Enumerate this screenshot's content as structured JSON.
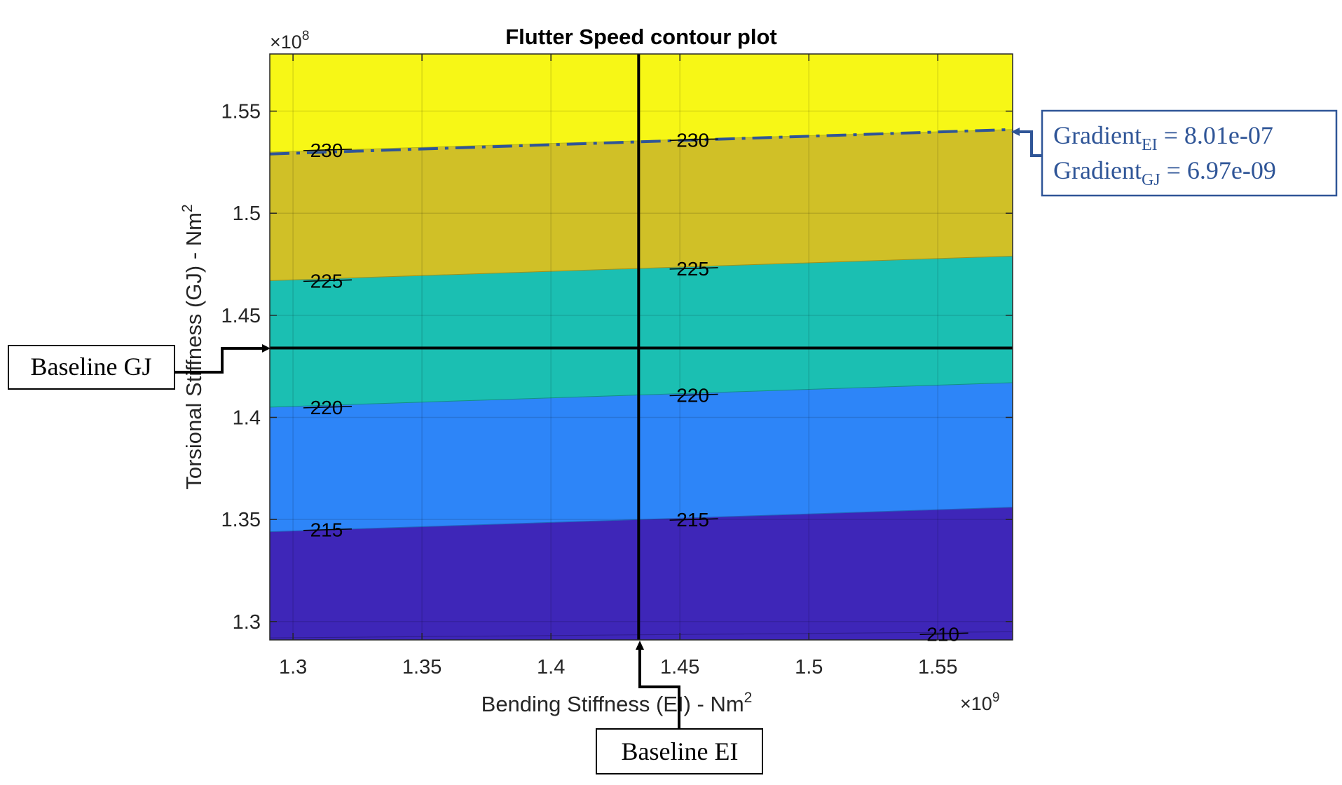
{
  "chart_data": {
    "type": "contour",
    "title": "Flutter Speed contour plot",
    "xlabel": "Bending Stiffness (EI) - Nm",
    "xlabel_sup": "2",
    "ylabel": "Torsional Stiffness (GJ) - Nm",
    "ylabel_sup": "2",
    "x_multiplier": "×10",
    "x_multiplier_exp": "9",
    "y_multiplier": "×10",
    "y_multiplier_exp": "8",
    "xlim": [
      1.291,
      1.579
    ],
    "ylim": [
      1.291,
      1.578
    ],
    "x_ticks": [
      1.3,
      1.35,
      1.4,
      1.45,
      1.5,
      1.55
    ],
    "x_tick_labels": [
      "1.3",
      "1.35",
      "1.4",
      "1.45",
      "1.5",
      "1.55"
    ],
    "y_ticks": [
      1.3,
      1.35,
      1.4,
      1.45,
      1.5,
      1.55
    ],
    "y_tick_labels": [
      "1.3",
      "1.35",
      "1.4",
      "1.45",
      "1.5",
      "1.55"
    ],
    "grid": true,
    "levels": [
      {
        "value": 210,
        "y_left": 1.292,
        "y_right": 1.295
      },
      {
        "value": 215,
        "y_left": 1.344,
        "y_right": 1.356
      },
      {
        "value": 220,
        "y_left": 1.405,
        "y_right": 1.417
      },
      {
        "value": 225,
        "y_left": 1.467,
        "y_right": 1.479
      },
      {
        "value": 230,
        "y_left": 1.53,
        "y_right": 1.541
      }
    ],
    "bands": [
      {
        "color": "#3e26b8"
      },
      {
        "color": "#2d85f8"
      },
      {
        "color": "#1bbfb2"
      },
      {
        "color": "#d0c027"
      },
      {
        "color": "#f7f716"
      }
    ],
    "contour_labels": [
      {
        "text": "210",
        "x": 1.552,
        "y": 1.294
      },
      {
        "text": "215",
        "x": 1.313,
        "y": 1.345
      },
      {
        "text": "215",
        "x": 1.455,
        "y": 1.35
      },
      {
        "text": "220",
        "x": 1.313,
        "y": 1.405
      },
      {
        "text": "220",
        "x": 1.455,
        "y": 1.411
      },
      {
        "text": "225",
        "x": 1.313,
        "y": 1.467
      },
      {
        "text": "225",
        "x": 1.455,
        "y": 1.473
      },
      {
        "text": "230",
        "x": 1.313,
        "y": 1.531
      },
      {
        "text": "230",
        "x": 1.455,
        "y": 1.536
      }
    ],
    "baseline": {
      "EI": 1.434,
      "GJ": 1.434
    },
    "gradient_line": {
      "x": [
        1.291,
        1.579
      ],
      "y": [
        1.529,
        1.541
      ]
    }
  },
  "annotations": {
    "baseline_gj": "Baseline GJ",
    "baseline_ei": "Baseline EI",
    "gradient_ei_label": "Gradient",
    "gradient_ei_sub": "EI",
    "gradient_ei_value": " = 8.01e-07",
    "gradient_gj_label": "Gradient",
    "gradient_gj_sub": "GJ",
    "gradient_gj_value": " = 6.97e-09",
    "gradient_color": "#2f5597"
  }
}
